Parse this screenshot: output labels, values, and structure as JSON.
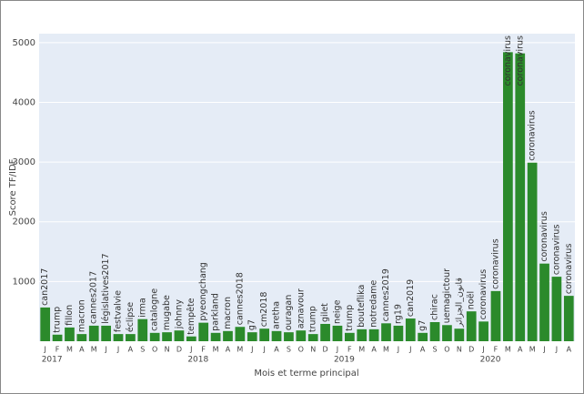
{
  "chart_data": {
    "type": "bar",
    "y_label": "Score TF/IDF",
    "x_label": "Mois et terme principal",
    "categories": [
      "J",
      "F",
      "M",
      "A",
      "M",
      "J",
      "J",
      "A",
      "S",
      "O",
      "N",
      "D",
      "J",
      "F",
      "M",
      "A",
      "M",
      "J",
      "J",
      "A",
      "S",
      "O",
      "N",
      "D",
      "J",
      "F",
      "M",
      "A",
      "M",
      "J",
      "J",
      "A",
      "S",
      "O",
      "N",
      "D",
      "J",
      "F",
      "M",
      "A",
      "M",
      "J",
      "J",
      "A"
    ],
    "year_labels": [
      "2017",
      null,
      null,
      null,
      null,
      null,
      null,
      null,
      null,
      null,
      null,
      null,
      "2018",
      null,
      null,
      null,
      null,
      null,
      null,
      null,
      null,
      null,
      null,
      null,
      "2019",
      null,
      null,
      null,
      null,
      null,
      null,
      null,
      null,
      null,
      null,
      null,
      "2020",
      null,
      null,
      null,
      null,
      null,
      null,
      null
    ],
    "terms": [
      "can2017",
      "trump",
      "fillon",
      "macron",
      "cannes2017",
      "législatives2017",
      "festvalvie",
      "éclipse",
      "irma",
      "catalogne",
      "mugabe",
      "johnny",
      "tempête",
      "pyeongchang",
      "parkland",
      "macron",
      "cannes2018",
      "g7",
      "cm2018",
      "aretha",
      "ouragan",
      "aznavour",
      "trump",
      "gilet",
      "neige",
      "trump",
      "bouteflika",
      "notredame",
      "cannes2019",
      "rg19",
      "can2019",
      "g7",
      "chirac",
      "uemagictour",
      "قانون_الجزائر",
      "noël",
      "coronavirus",
      "coronavirus",
      "coronavirus",
      "coronavirus",
      "coronavirus",
      "coronavirus",
      "coronavirus",
      "coronavirus"
    ],
    "values": [
      565,
      110,
      230,
      120,
      260,
      260,
      120,
      120,
      370,
      140,
      150,
      180,
      80,
      310,
      140,
      170,
      240,
      150,
      210,
      170,
      150,
      180,
      120,
      290,
      260,
      140,
      200,
      200,
      300,
      260,
      380,
      140,
      320,
      270,
      210,
      500,
      330,
      840,
      4840,
      4820,
      2990,
      1300,
      1080,
      760
    ],
    "color": "#2b8a2b",
    "ylim": [
      0,
      5150
    ],
    "yticks": [
      1000,
      2000,
      3000,
      4000,
      5000
    ],
    "grid": true
  }
}
